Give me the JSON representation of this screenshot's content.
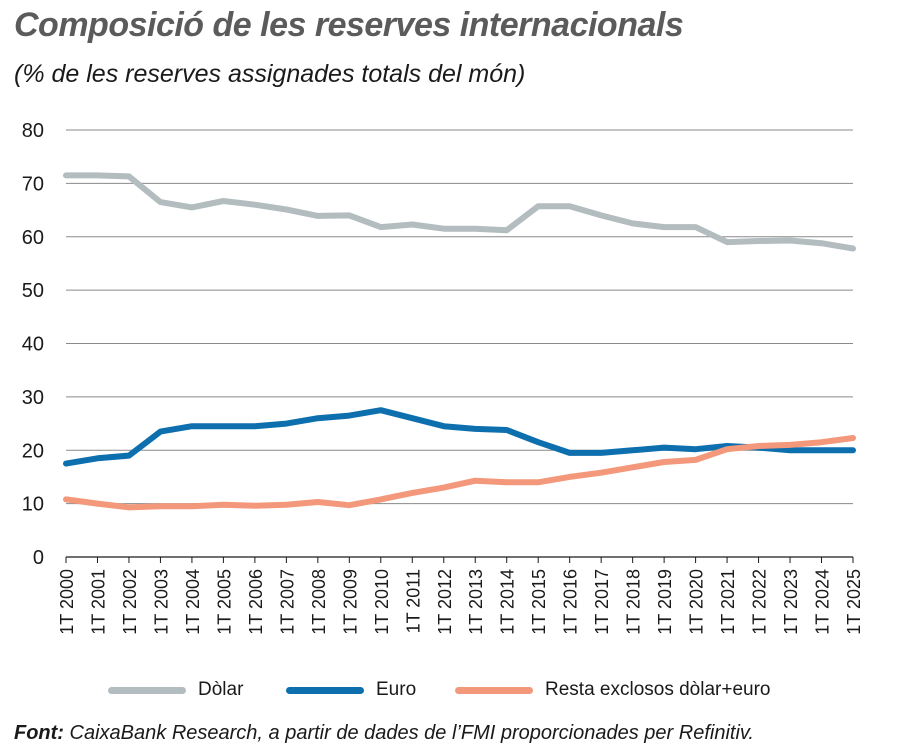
{
  "header": {
    "title": "Composició de les reserves internacionals",
    "subtitle": "(% de les reserves assignades totals del món)"
  },
  "source": {
    "label": "Font:",
    "text": " CaixaBank Research, a partir de dades de l’FMI proporcionades per Refinitiv."
  },
  "chart_data": {
    "type": "line",
    "x": [
      "1T 2000",
      "1T 2001",
      "1T 2002",
      "1T 2003",
      "1T 2004",
      "1T 2005",
      "1T 2006",
      "1T 2007",
      "1T 2008",
      "1T 2009",
      "1T 2010",
      "1T 2011",
      "1T 2012",
      "1T 2013",
      "1T 2014",
      "1T 2015",
      "1T 2016",
      "1T 2017",
      "1T 2018",
      "1T 2019",
      "1T 2020",
      "1T 2021",
      "1T 2022",
      "1T 2023",
      "1T 2024",
      "1T 2025"
    ],
    "ylim": [
      0,
      80
    ],
    "yticks": [
      0,
      10,
      20,
      30,
      40,
      50,
      60,
      70,
      80
    ],
    "grid": true,
    "legend_position": "bottom",
    "series": [
      {
        "name": "Dòlar",
        "color": "#b3bcbf",
        "values": [
          71.5,
          71.5,
          71.3,
          66.5,
          65.5,
          66.7,
          66.0,
          65.1,
          63.9,
          64.0,
          61.8,
          62.3,
          61.5,
          61.5,
          61.2,
          65.7,
          65.7,
          64.0,
          62.5,
          61.8,
          61.8,
          59.0,
          59.2,
          59.3,
          58.8,
          57.8
        ]
      },
      {
        "name": "Euro",
        "color": "#0e6faf",
        "values": [
          17.5,
          18.5,
          19.0,
          23.5,
          24.5,
          24.5,
          24.5,
          25.0,
          26.0,
          26.5,
          27.5,
          26.0,
          24.5,
          24.0,
          23.8,
          21.5,
          19.5,
          19.5,
          20.0,
          20.5,
          20.2,
          20.8,
          20.5,
          20.0,
          20.0,
          20.0
        ]
      },
      {
        "name": "Resta exclosos dòlar+euro",
        "color": "#f3987a",
        "values": [
          10.8,
          10.0,
          9.3,
          9.5,
          9.5,
          9.8,
          9.6,
          9.8,
          10.3,
          9.7,
          10.8,
          12.0,
          13.0,
          14.3,
          14.0,
          14.0,
          15.0,
          15.8,
          16.8,
          17.8,
          18.2,
          20.2,
          20.8,
          21.0,
          21.5,
          22.3
        ]
      }
    ]
  }
}
